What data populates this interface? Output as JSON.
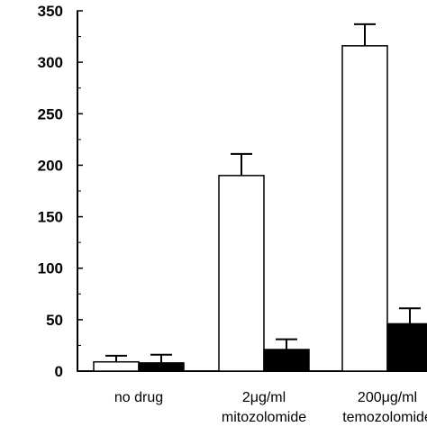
{
  "chart_data": {
    "type": "bar",
    "title": "",
    "xlabel": "",
    "ylabel": "",
    "ylim": [
      0,
      350
    ],
    "yticks": [
      0,
      50,
      100,
      150,
      200,
      250,
      300,
      350
    ],
    "grid": false,
    "legend": "none",
    "categories": [
      [
        "no drug",
        ""
      ],
      [
        "2μg/ml",
        "mitozolomide"
      ],
      [
        "200μg/ml",
        "temozolomide"
      ]
    ],
    "series": [
      {
        "fill": "#ffffff",
        "values": [
          9,
          190,
          316
        ],
        "errors": [
          6,
          21,
          21
        ]
      },
      {
        "fill": "#000000",
        "values": [
          8,
          21,
          46
        ],
        "errors": [
          8,
          10,
          15
        ]
      }
    ]
  }
}
